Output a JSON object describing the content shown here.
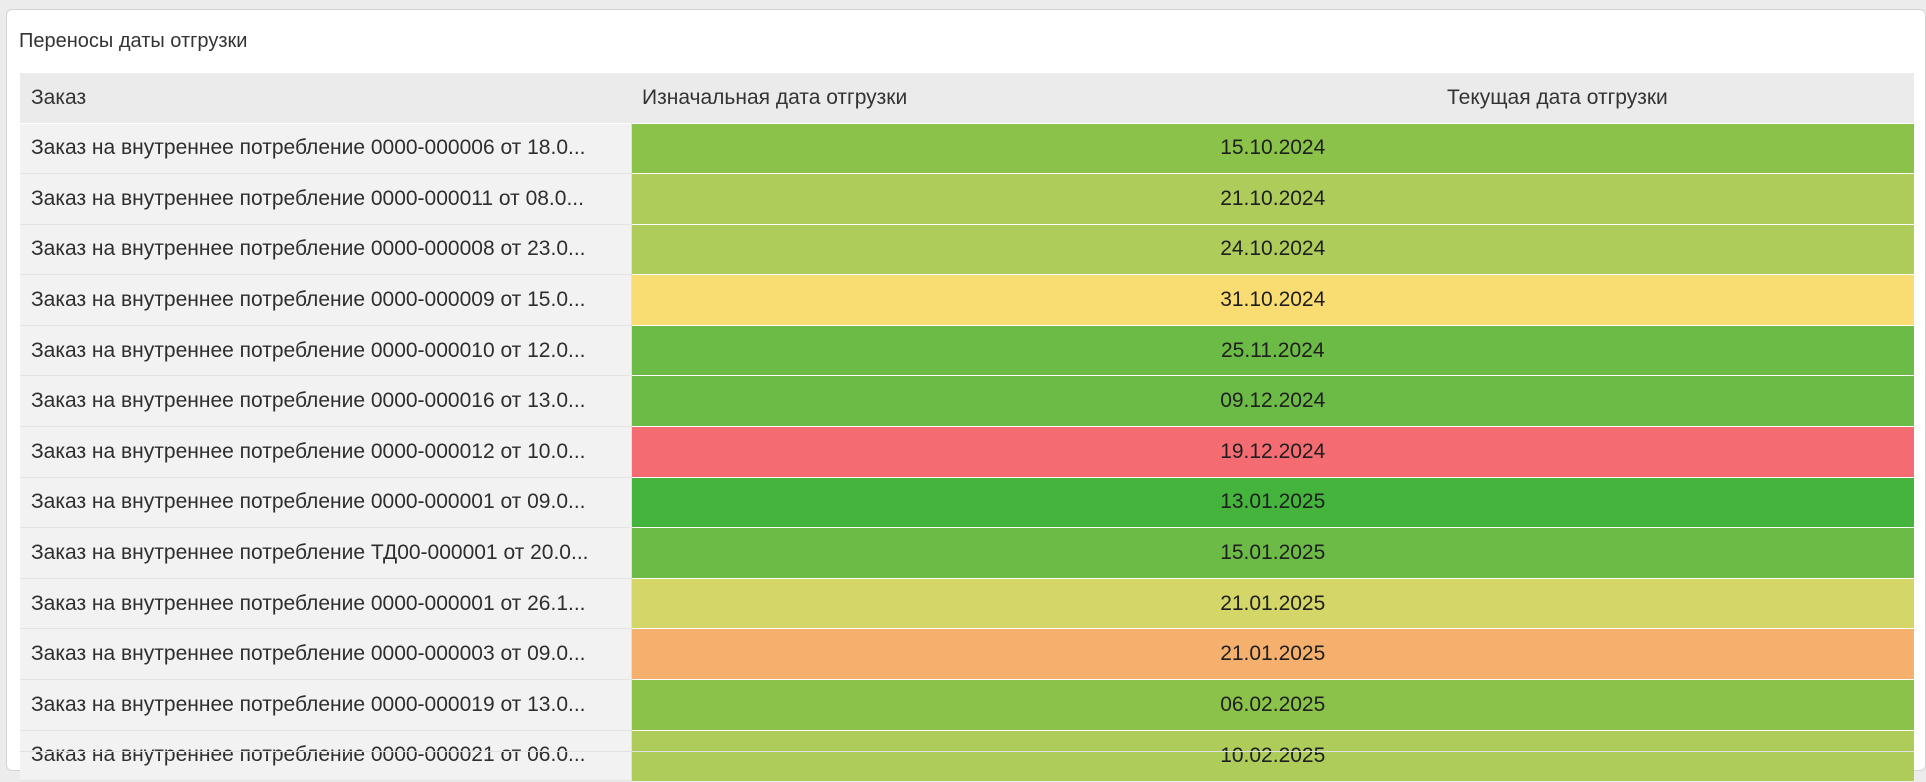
{
  "panel": {
    "title": "Переносы даты отгрузки"
  },
  "table": {
    "headers": {
      "order": "Заказ",
      "initial_date": "Изначальная дата отгрузки",
      "current_date": "Текущая дата отгрузки"
    },
    "rows": [
      {
        "order": "Заказ на внутреннее потребление 0000-000006 от 18.0...",
        "date": "15.10.2024",
        "color": "#8bc34a"
      },
      {
        "order": "Заказ на внутреннее потребление 0000-000011 от 08.0...",
        "date": "21.10.2024",
        "color": "#aecc5a"
      },
      {
        "order": "Заказ на внутреннее потребление 0000-000008 от 23.0...",
        "date": "24.10.2024",
        "color": "#aecc5a"
      },
      {
        "order": "Заказ на внутреннее потребление 0000-000009 от 15.0...",
        "date": "31.10.2024",
        "color": "#f9dc72"
      },
      {
        "order": "Заказ на внутреннее потребление 0000-000010 от 12.0...",
        "date": "25.11.2024",
        "color": "#6cbb47"
      },
      {
        "order": "Заказ на внутреннее потребление 0000-000016 от 13.0...",
        "date": "09.12.2024",
        "color": "#6cbb47"
      },
      {
        "order": "Заказ на внутреннее потребление 0000-000012 от 10.0...",
        "date": "19.12.2024",
        "color": "#f46b72"
      },
      {
        "order": "Заказ на внутреннее потребление 0000-000001 от 09.0...",
        "date": "13.01.2025",
        "color": "#45b43c"
      },
      {
        "order": "Заказ на внутреннее потребление ТД00-000001 от 20.0...",
        "date": "15.01.2025",
        "color": "#6cbb47"
      },
      {
        "order": "Заказ на внутреннее потребление 0000-000001 от 26.1...",
        "date": "21.01.2025",
        "color": "#d4d667"
      },
      {
        "order": "Заказ на внутреннее потребление 0000-000003 от 09.0...",
        "date": "21.01.2025",
        "color": "#f6b06e"
      },
      {
        "order": "Заказ на внутреннее потребление 0000-000019 от 13.0...",
        "date": "06.02.2025",
        "color": "#8bc34a"
      },
      {
        "order": "Заказ на внутреннее потребление 0000-000021 от 06.0...",
        "date": "10.02.2025",
        "color": "#aecc5a"
      }
    ]
  }
}
